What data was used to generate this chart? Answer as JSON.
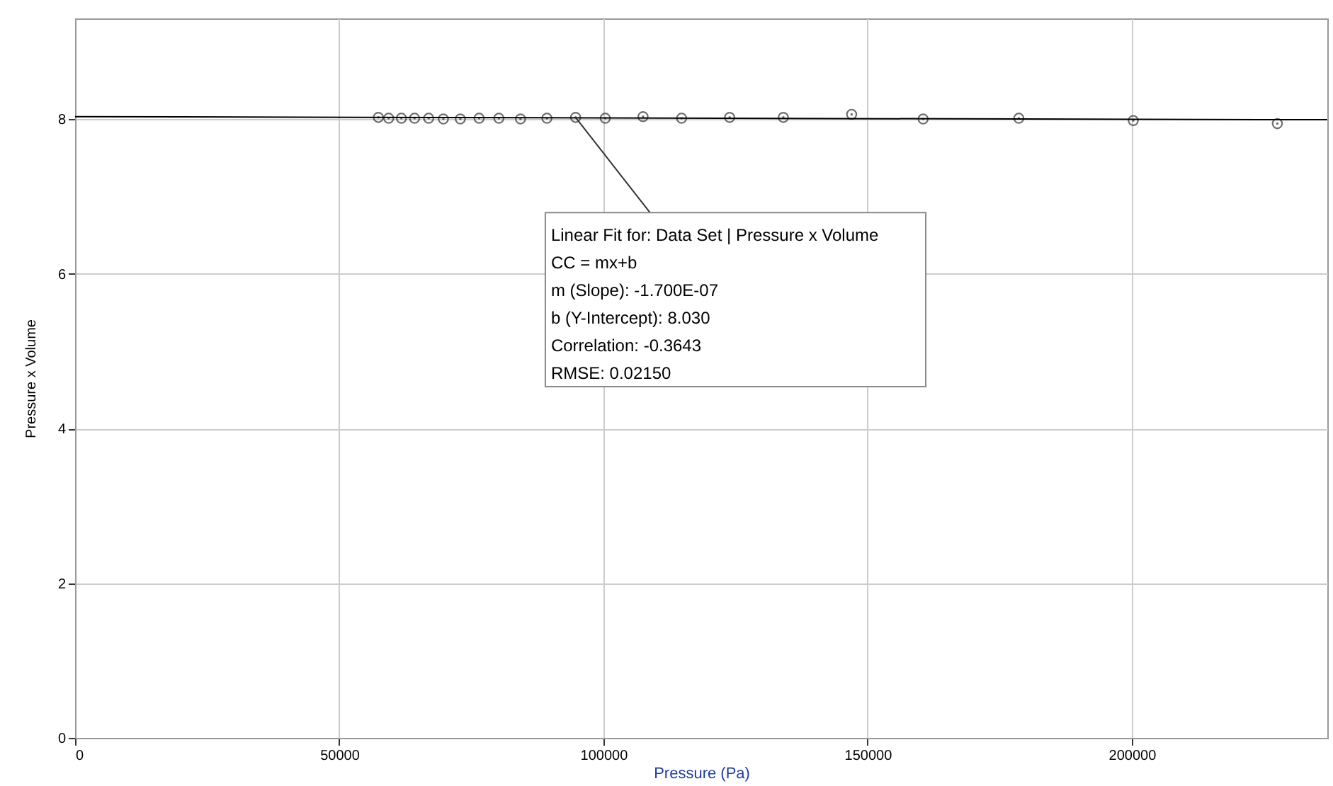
{
  "chart_data": {
    "type": "scatter",
    "xlabel": "Pressure (Pa)",
    "ylabel": "Pressure x Volume",
    "xlim": [
      0,
      237000
    ],
    "ylim": [
      0,
      9.3
    ],
    "xticks": [
      0,
      50000,
      100000,
      150000,
      200000
    ],
    "yticks": [
      0,
      2,
      4,
      6,
      8
    ],
    "grid": true,
    "x": [
      57400,
      59350,
      61760,
      64250,
      66920,
      69700,
      72910,
      76470,
      80210,
      84300,
      89300,
      94730,
      100340,
      107490,
      114790,
      123880,
      134040,
      146970,
      160500,
      178610,
      200270,
      227540
    ],
    "series": [
      {
        "color": "#333333",
        "marker": "circle",
        "values": [
          8.02,
          8.01,
          8.01,
          8.01,
          8.01,
          8.0,
          8.0,
          8.01,
          8.01,
          8.0,
          8.01,
          8.02,
          8.01,
          8.03,
          8.01,
          8.02,
          8.02,
          8.06,
          8.0,
          8.01,
          7.98,
          7.94
        ]
      },
      {
        "type": "line",
        "color": "#000000",
        "marker": "none",
        "x": [
          0,
          237000
        ],
        "values": [
          8.03,
          7.99
        ]
      }
    ],
    "annotations": [
      {
        "text": "Linear Fit for: Data Set | Pressure x Volume",
        "x": 94730,
        "y": 8.02
      },
      "CC = mx+b",
      "m (Slope): -1.700E-07",
      "b (Y-Intercept): 8.030",
      "Correlation: -0.3643",
      "RMSE: 0.02150"
    ]
  }
}
